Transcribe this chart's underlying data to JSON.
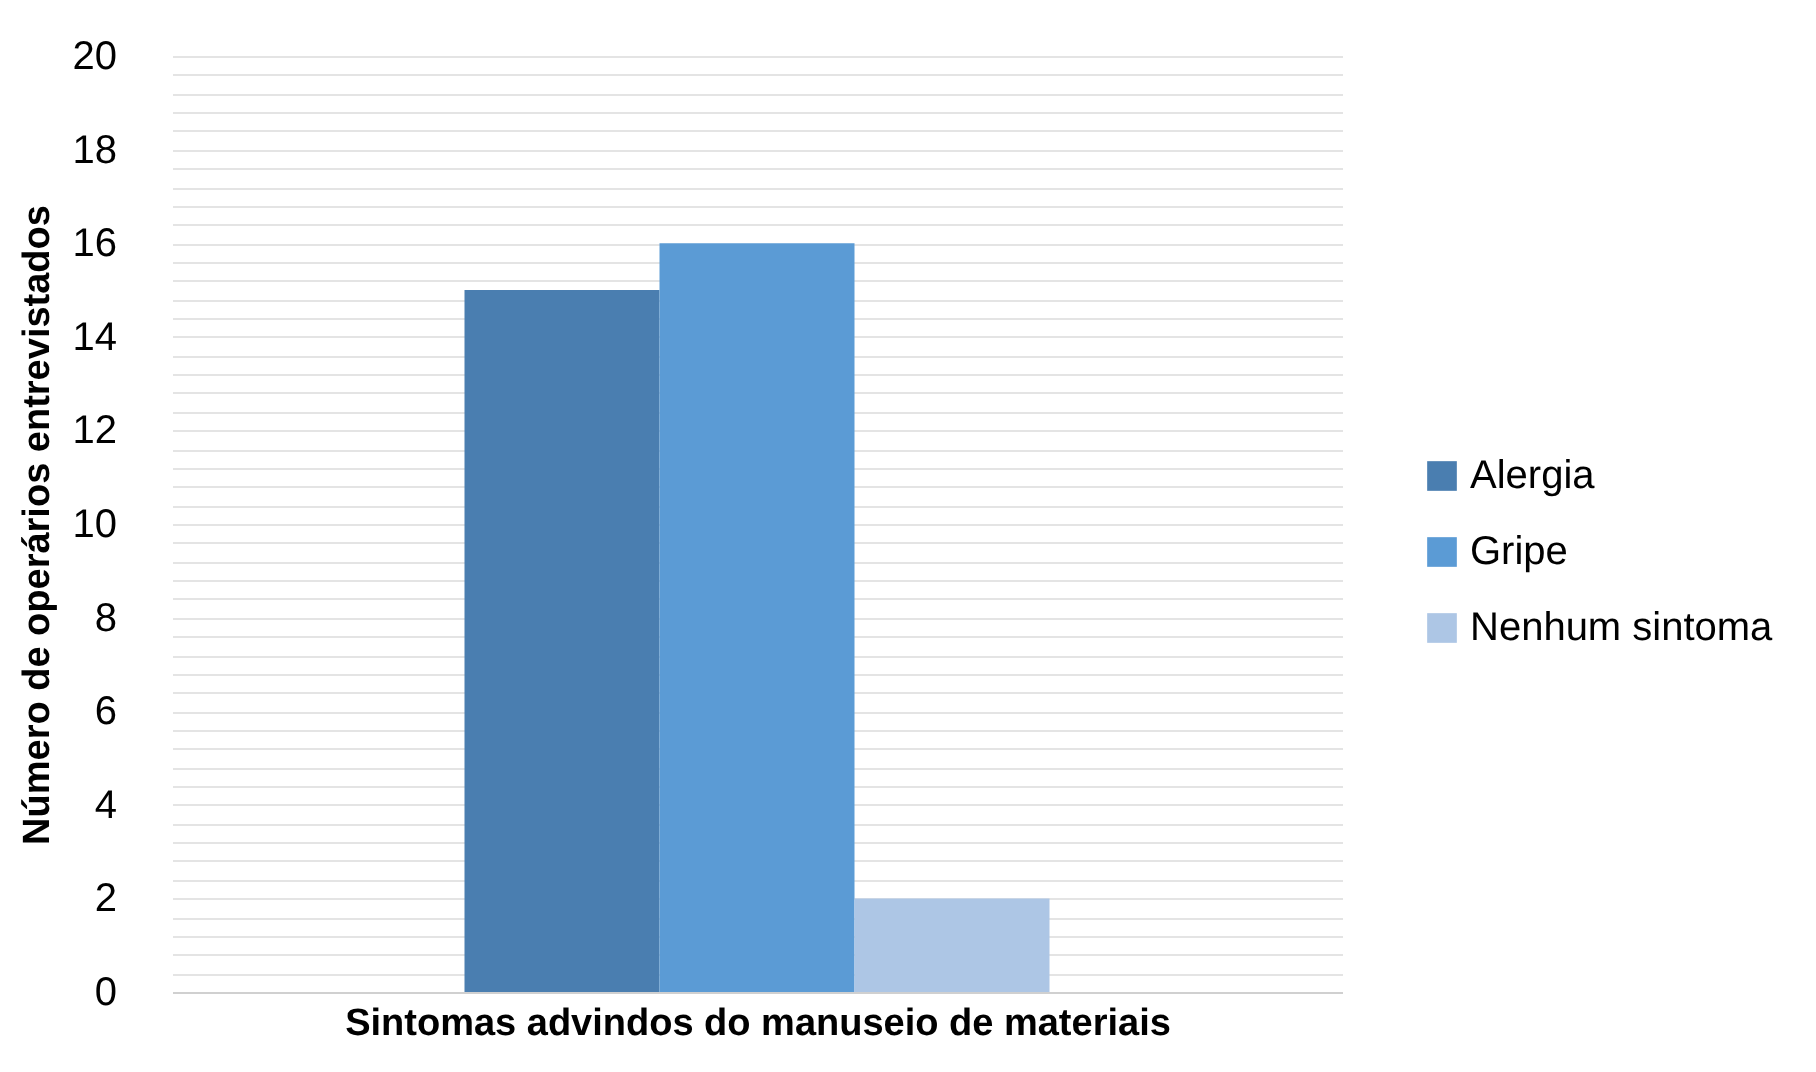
{
  "chart_data": {
    "type": "bar",
    "xlabel": "Sintomas advindos do manuseio de materiais",
    "ylabel": "Número de operários entrevistados",
    "categories": [
      null
    ],
    "series": [
      {
        "name": "Alergia",
        "color": "#4a7eb0",
        "values": [
          15
        ]
      },
      {
        "name": "Gripe",
        "color": "#5b9bd5",
        "values": [
          16
        ]
      },
      {
        "name": "Nenhum sintoma",
        "color": "#adc6e5",
        "values": [
          2
        ]
      }
    ],
    "ylim": [
      0,
      20
    ],
    "yticks": [
      0,
      {
        "value": 0.4,
        "label": null
      },
      {
        "value": 0.8,
        "label": null
      },
      {
        "value": 1.2,
        "label": null
      },
      {
        "value": 1.6,
        "label": null
      },
      2,
      {
        "value": 2.4,
        "label": null
      },
      {
        "value": 2.8,
        "label": null
      },
      {
        "value": 3.2,
        "label": null
      },
      {
        "value": 3.6,
        "label": null
      },
      4,
      {
        "value": 4.4,
        "label": null
      },
      {
        "value": 4.8,
        "label": null
      },
      {
        "value": 5.2,
        "label": null
      },
      {
        "value": 5.6,
        "label": null
      },
      6,
      {
        "value": 6.4,
        "label": null
      },
      {
        "value": 6.8,
        "label": null
      },
      {
        "value": 7.2,
        "label": null
      },
      {
        "value": 7.6,
        "label": null
      },
      8,
      {
        "value": 8.4,
        "label": null
      },
      {
        "value": 8.8,
        "label": null
      },
      {
        "value": 9.2,
        "label": null
      },
      {
        "value": 9.6,
        "label": null
      },
      10,
      {
        "value": 10.4,
        "label": null
      },
      {
        "value": 10.8,
        "label": null
      },
      {
        "value": 11.2,
        "label": null
      },
      {
        "value": 11.6,
        "label": null
      },
      12,
      {
        "value": 12.4,
        "label": null
      },
      {
        "value": 12.8,
        "label": null
      },
      {
        "value": 13.2,
        "label": null
      },
      {
        "value": 13.6,
        "label": null
      },
      14,
      {
        "value": 14.4,
        "label": null
      },
      {
        "value": 14.8,
        "label": null
      },
      {
        "value": 15.2,
        "label": null
      },
      {
        "value": 15.6,
        "label": null
      },
      16,
      {
        "value": 16.4,
        "label": null
      },
      {
        "value": 16.8,
        "label": null
      },
      {
        "value": 17.2,
        "label": null
      },
      {
        "value": 17.6,
        "label": null
      },
      18,
      {
        "value": 18.4,
        "label": null
      },
      {
        "value": 18.8,
        "label": null
      },
      {
        "value": 19.2,
        "label": null
      },
      {
        "value": 19.6,
        "label": null
      },
      20
    ],
    "grid": "y",
    "legend": "right"
  }
}
